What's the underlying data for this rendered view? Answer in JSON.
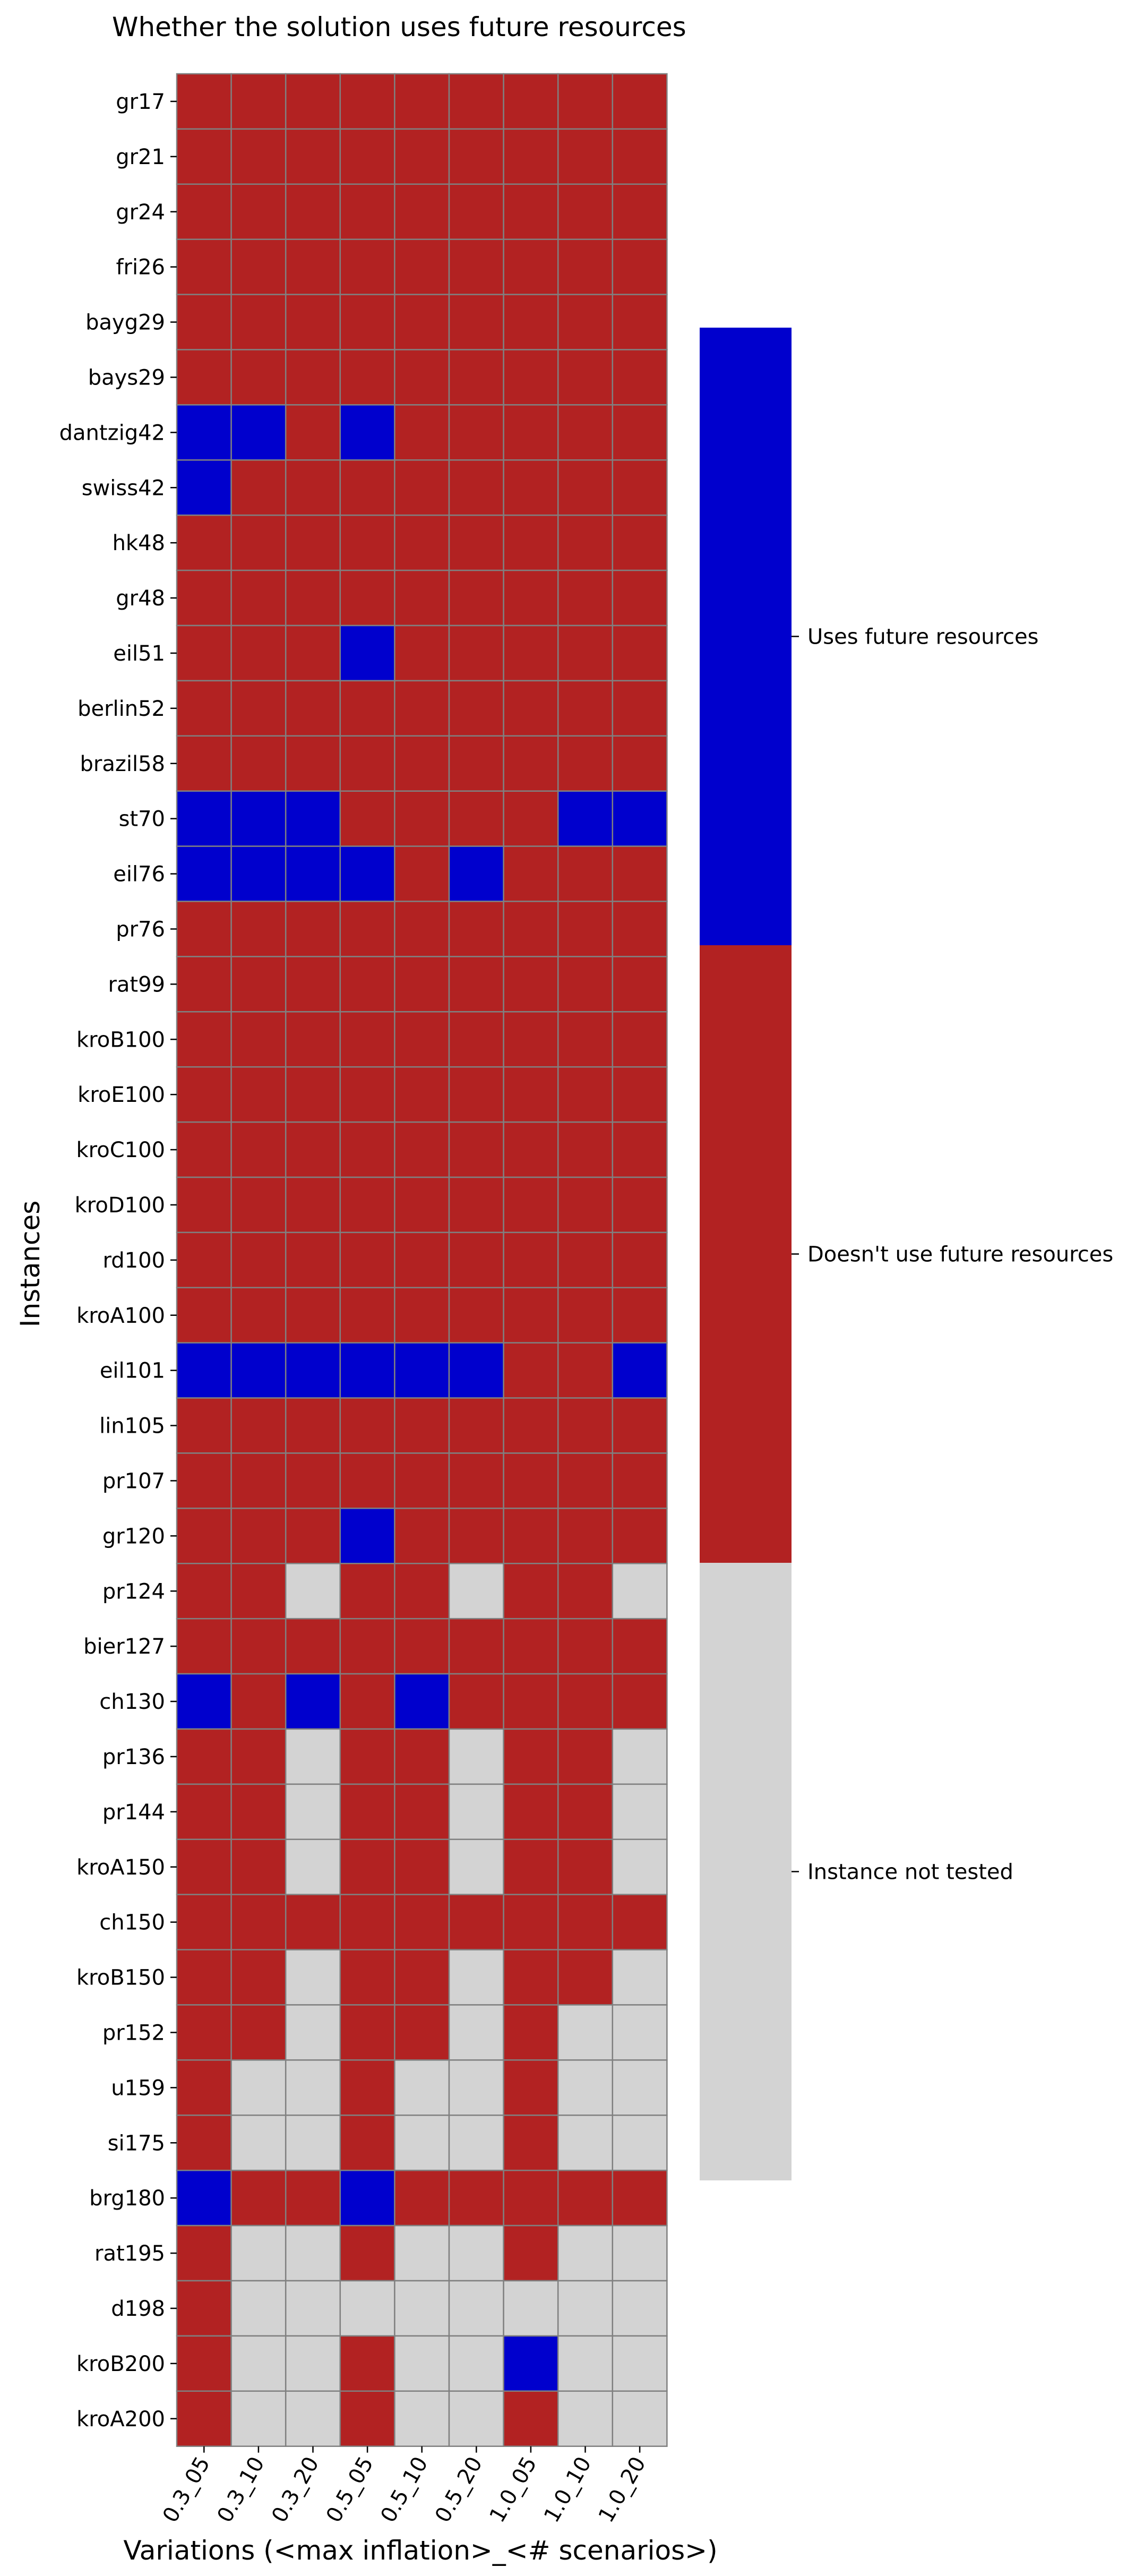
{
  "chart_data": {
    "type": "heatmap",
    "title": "Whether the solution uses future resources",
    "xlabel": "Variations (<max inflation>_<# scenarios>)",
    "ylabel": "Instances",
    "x_categories": [
      "0.3_05",
      "0.3_10",
      "0.3_20",
      "0.5_05",
      "0.5_10",
      "0.5_20",
      "1.0_05",
      "1.0_10",
      "1.0_20"
    ],
    "y_categories": [
      "gr17",
      "gr21",
      "gr24",
      "fri26",
      "bayg29",
      "bays29",
      "dantzig42",
      "swiss42",
      "hk48",
      "gr48",
      "eil51",
      "berlin52",
      "brazil58",
      "st70",
      "eil76",
      "pr76",
      "rat99",
      "kroB100",
      "kroE100",
      "kroC100",
      "kroD100",
      "rd100",
      "kroA100",
      "eil101",
      "lin105",
      "pr107",
      "gr120",
      "pr124",
      "bier127",
      "ch130",
      "pr136",
      "pr144",
      "kroA150",
      "ch150",
      "kroB150",
      "pr152",
      "u159",
      "si175",
      "brg180",
      "rat195",
      "d198",
      "kroB200",
      "kroA200"
    ],
    "value_legend": {
      "1": "Uses future resources",
      "0": "Doesn't use future resources",
      "-1": "Instance not tested"
    },
    "colors": {
      "1": "#0000cd",
      "0": "#b22222",
      "-1": "#d3d3d3",
      "grid": "#808080"
    },
    "values": [
      [
        0,
        0,
        0,
        0,
        0,
        0,
        0,
        0,
        0
      ],
      [
        0,
        0,
        0,
        0,
        0,
        0,
        0,
        0,
        0
      ],
      [
        0,
        0,
        0,
        0,
        0,
        0,
        0,
        0,
        0
      ],
      [
        0,
        0,
        0,
        0,
        0,
        0,
        0,
        0,
        0
      ],
      [
        0,
        0,
        0,
        0,
        0,
        0,
        0,
        0,
        0
      ],
      [
        0,
        0,
        0,
        0,
        0,
        0,
        0,
        0,
        0
      ],
      [
        1,
        1,
        0,
        1,
        0,
        0,
        0,
        0,
        0
      ],
      [
        1,
        0,
        0,
        0,
        0,
        0,
        0,
        0,
        0
      ],
      [
        0,
        0,
        0,
        0,
        0,
        0,
        0,
        0,
        0
      ],
      [
        0,
        0,
        0,
        0,
        0,
        0,
        0,
        0,
        0
      ],
      [
        0,
        0,
        0,
        1,
        0,
        0,
        0,
        0,
        0
      ],
      [
        0,
        0,
        0,
        0,
        0,
        0,
        0,
        0,
        0
      ],
      [
        0,
        0,
        0,
        0,
        0,
        0,
        0,
        0,
        0
      ],
      [
        1,
        1,
        1,
        0,
        0,
        0,
        0,
        1,
        1
      ],
      [
        1,
        1,
        1,
        1,
        0,
        1,
        0,
        0,
        0
      ],
      [
        0,
        0,
        0,
        0,
        0,
        0,
        0,
        0,
        0
      ],
      [
        0,
        0,
        0,
        0,
        0,
        0,
        0,
        0,
        0
      ],
      [
        0,
        0,
        0,
        0,
        0,
        0,
        0,
        0,
        0
      ],
      [
        0,
        0,
        0,
        0,
        0,
        0,
        0,
        0,
        0
      ],
      [
        0,
        0,
        0,
        0,
        0,
        0,
        0,
        0,
        0
      ],
      [
        0,
        0,
        0,
        0,
        0,
        0,
        0,
        0,
        0
      ],
      [
        0,
        0,
        0,
        0,
        0,
        0,
        0,
        0,
        0
      ],
      [
        0,
        0,
        0,
        0,
        0,
        0,
        0,
        0,
        0
      ],
      [
        1,
        1,
        1,
        1,
        1,
        1,
        0,
        0,
        1
      ],
      [
        0,
        0,
        0,
        0,
        0,
        0,
        0,
        0,
        0
      ],
      [
        0,
        0,
        0,
        0,
        0,
        0,
        0,
        0,
        0
      ],
      [
        0,
        0,
        0,
        1,
        0,
        0,
        0,
        0,
        0
      ],
      [
        0,
        0,
        -1,
        0,
        0,
        -1,
        0,
        0,
        -1
      ],
      [
        0,
        0,
        0,
        0,
        0,
        0,
        0,
        0,
        0
      ],
      [
        1,
        0,
        1,
        0,
        1,
        0,
        0,
        0,
        0
      ],
      [
        0,
        0,
        -1,
        0,
        0,
        -1,
        0,
        0,
        -1
      ],
      [
        0,
        0,
        -1,
        0,
        0,
        -1,
        0,
        0,
        -1
      ],
      [
        0,
        0,
        -1,
        0,
        0,
        -1,
        0,
        0,
        -1
      ],
      [
        0,
        0,
        0,
        0,
        0,
        0,
        0,
        0,
        0
      ],
      [
        0,
        0,
        -1,
        0,
        0,
        -1,
        0,
        0,
        -1
      ],
      [
        0,
        0,
        -1,
        0,
        0,
        -1,
        0,
        -1,
        -1
      ],
      [
        0,
        -1,
        -1,
        0,
        -1,
        -1,
        0,
        -1,
        -1
      ],
      [
        0,
        -1,
        -1,
        0,
        -1,
        -1,
        0,
        -1,
        -1
      ],
      [
        1,
        0,
        0,
        1,
        0,
        0,
        0,
        0,
        0
      ],
      [
        0,
        -1,
        -1,
        0,
        -1,
        -1,
        0,
        -1,
        -1
      ],
      [
        0,
        -1,
        -1,
        -1,
        -1,
        -1,
        -1,
        -1,
        -1
      ],
      [
        0,
        -1,
        -1,
        0,
        -1,
        -1,
        1,
        -1,
        -1
      ],
      [
        0,
        -1,
        -1,
        0,
        -1,
        -1,
        0,
        -1,
        -1
      ]
    ],
    "colorbar_order": [
      "1",
      "0",
      "-1"
    ]
  }
}
